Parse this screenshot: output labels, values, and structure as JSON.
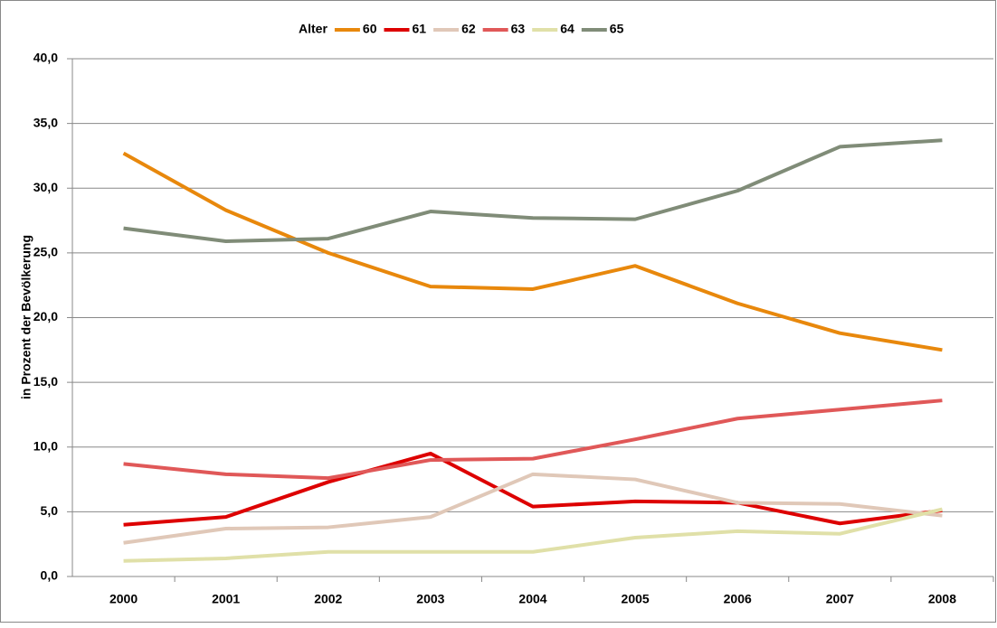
{
  "chart_data": {
    "type": "line",
    "y_label": "in Prozent der Bevölkerung",
    "legend_title": "Alter",
    "legend_position": "top",
    "categories": [
      "2000",
      "2001",
      "2002",
      "2003",
      "2004",
      "2005",
      "2006",
      "2007",
      "2008"
    ],
    "series": [
      {
        "name": "60",
        "color": "#e8880c",
        "values": [
          32.7,
          28.3,
          25.0,
          22.4,
          22.2,
          24.0,
          21.1,
          18.8,
          17.5
        ]
      },
      {
        "name": "61",
        "color": "#dd0000",
        "values": [
          4.0,
          4.6,
          7.3,
          9.5,
          5.4,
          5.8,
          5.7,
          4.1,
          5.1
        ]
      },
      {
        "name": "62",
        "color": "#e0c8b8",
        "values": [
          2.6,
          3.7,
          3.8,
          4.6,
          7.9,
          7.5,
          5.7,
          5.6,
          4.7
        ]
      },
      {
        "name": "63",
        "color": "#e05858",
        "values": [
          8.7,
          7.9,
          7.6,
          9.0,
          9.1,
          10.6,
          12.2,
          12.9,
          13.6
        ]
      },
      {
        "name": "64",
        "color": "#e0e0a8",
        "values": [
          1.2,
          1.4,
          1.9,
          1.9,
          1.9,
          3.0,
          3.5,
          3.3,
          5.2
        ]
      },
      {
        "name": "65",
        "color": "#808c78",
        "values": [
          26.9,
          25.9,
          26.1,
          28.2,
          27.7,
          27.6,
          29.8,
          33.2,
          33.7
        ]
      }
    ],
    "ylim": [
      0,
      40
    ],
    "yticks": [
      {
        "value": 0,
        "label": "0,0"
      },
      {
        "value": 5,
        "label": "5,0"
      },
      {
        "value": 10,
        "label": "10,0"
      },
      {
        "value": 15,
        "label": "15,0"
      },
      {
        "value": 20,
        "label": "20,0"
      },
      {
        "value": 25,
        "label": "25,0"
      },
      {
        "value": 30,
        "label": "30,0"
      },
      {
        "value": 35,
        "label": "35,0"
      },
      {
        "value": 40,
        "label": "40,0"
      }
    ],
    "grid": true
  }
}
